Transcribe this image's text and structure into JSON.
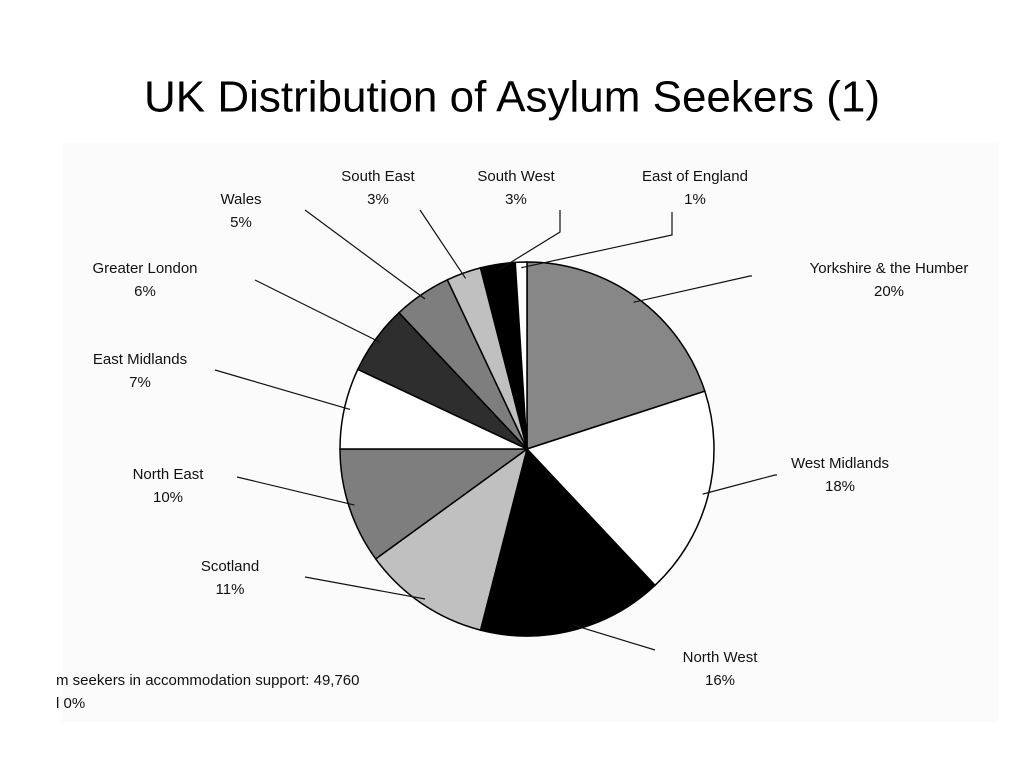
{
  "chart_data": {
    "type": "pie",
    "title": "UK Distribution of Asylum Seekers (1)",
    "categories": [
      "Yorkshire & the Humber",
      "West Midlands",
      "North West",
      "Scotland",
      "North East",
      "East Midlands",
      "Greater London",
      "Wales",
      "South East",
      "South West",
      "East of England"
    ],
    "values": [
      20,
      18,
      16,
      11,
      10,
      7,
      6,
      5,
      3,
      3,
      1
    ],
    "value_labels": [
      "20%",
      "18%",
      "16%",
      "11%",
      "10%",
      "7%",
      "6%",
      "5%",
      "3%",
      "3%",
      "1%"
    ],
    "colors": [
      "#878787",
      "#ffffff",
      "#000000",
      "#c0c0c0",
      "#7e7e7e",
      "#ffffff",
      "#2e2e2e",
      "#7e7e7e",
      "#c0c0c0",
      "#000000",
      "#ffffff"
    ],
    "annotations": [
      "m seekers in accommodation support: 49,760",
      "l 0%"
    ]
  }
}
